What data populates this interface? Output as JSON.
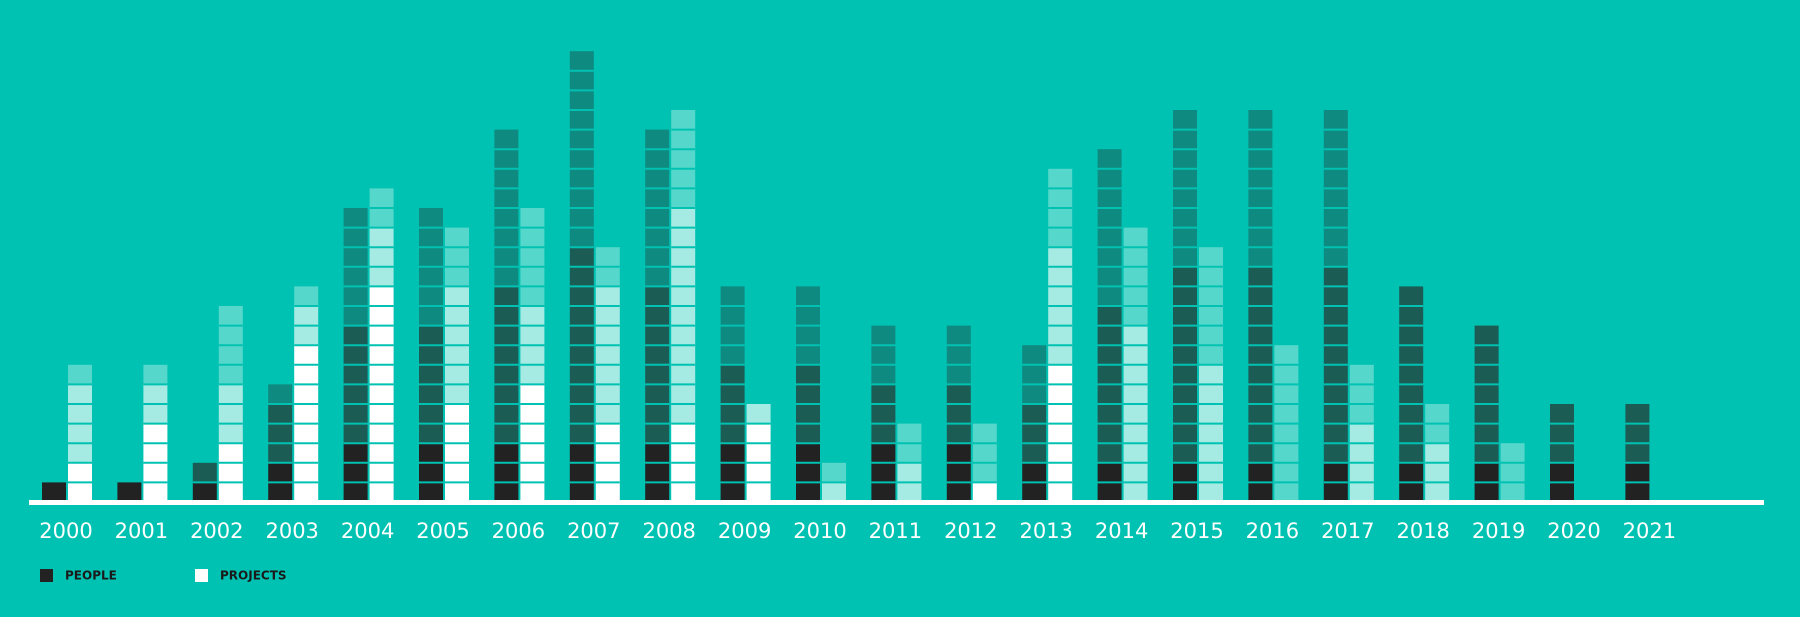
{
  "chart_data": {
    "type": "unit-stacked-bar",
    "categories": [
      "2000",
      "2001",
      "2002",
      "2003",
      "2004",
      "2005",
      "2006",
      "2007",
      "2008",
      "2009",
      "2010",
      "2011",
      "2012",
      "2013",
      "2014",
      "2015",
      "2016",
      "2017",
      "2018",
      "2019",
      "2020",
      "2021"
    ],
    "groups": [
      {
        "name": "PEOPLE",
        "color": "#222222",
        "segments": [
          {
            "color": "#222222",
            "values": [
              1,
              1,
              1,
              2,
              3,
              3,
              3,
              3,
              3,
              3,
              3,
              3,
              3,
              2,
              2,
              2,
              2,
              2,
              2,
              2,
              2,
              2
            ]
          },
          {
            "color": "#1b5c55",
            "values": [
              0,
              0,
              1,
              3,
              6,
              6,
              8,
              10,
              8,
              4,
              4,
              3,
              3,
              3,
              8,
              10,
              10,
              10,
              9,
              7,
              3,
              3
            ]
          },
          {
            "color": "#0f8a80",
            "values": [
              0,
              0,
              0,
              1,
              6,
              6,
              8,
              10,
              8,
              4,
              4,
              3,
              3,
              3,
              8,
              8,
              8,
              8,
              0,
              0,
              0,
              0
            ]
          }
        ]
      },
      {
        "name": "PROJECTS",
        "color": "#ffffff",
        "segments": [
          {
            "color": "#ffffff",
            "values": [
              2,
              4,
              3,
              8,
              11,
              5,
              6,
              4,
              4,
              4,
              0,
              0,
              1,
              7,
              0,
              0,
              0,
              0,
              0,
              0,
              0,
              0
            ]
          },
          {
            "color": "#a6ebe3",
            "values": [
              4,
              2,
              3,
              2,
              3,
              6,
              4,
              7,
              11,
              1,
              1,
              2,
              0,
              6,
              9,
              7,
              0,
              4,
              3,
              0,
              0,
              0
            ]
          },
          {
            "color": "#55d8cb",
            "values": [
              1,
              1,
              4,
              1,
              2,
              3,
              5,
              2,
              5,
              0,
              1,
              2,
              3,
              4,
              5,
              6,
              8,
              3,
              2,
              3,
              0,
              0
            ]
          }
        ]
      }
    ]
  }
}
